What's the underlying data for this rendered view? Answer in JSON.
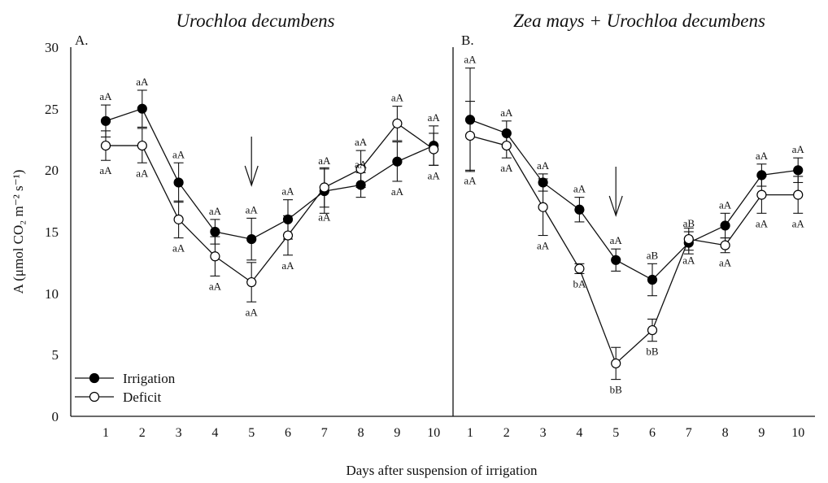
{
  "chart_data": {
    "type": "line",
    "x_axis_title": "Days after suspension of irrigation",
    "y_axis_title": "A (μmol CO₂ m⁻² s⁻¹)",
    "y_ticks": [
      "0",
      "5",
      "10",
      "15",
      "20",
      "25",
      "30"
    ],
    "ylim": [
      0,
      30
    ],
    "x": [
      1,
      2,
      3,
      4,
      5,
      6,
      7,
      8,
      9,
      10
    ],
    "x_tick_labels": [
      "1",
      "2",
      "3",
      "4",
      "5",
      "6",
      "7",
      "8",
      "9",
      "10"
    ],
    "legend": {
      "position": "bottom-left",
      "items": [
        {
          "label": "Irrigation",
          "marker": "filled-circle"
        },
        {
          "label": "Deficit",
          "marker": "open-circle"
        }
      ]
    },
    "colors": {
      "marker_fill": "#000000",
      "open_marker_fill": "#ffffff",
      "line": "#111111"
    },
    "panels": [
      {
        "letter": "A.",
        "title": "Urochloa decumbens",
        "arrow_at_x": 5,
        "series": [
          {
            "name": "Irrigation",
            "marker": "filled",
            "values": [
              24.0,
              25.0,
              19.0,
              15.0,
              14.4,
              16.0,
              18.3,
              18.8,
              20.7,
              22.0
            ],
            "errors": [
              1.3,
              1.5,
              1.6,
              1.0,
              1.7,
              1.6,
              1.8,
              1.0,
              1.6,
              1.6
            ],
            "labels": [
              "aA",
              "aA",
              "aA",
              "aA",
              "aA",
              "aA",
              "aA",
              "aA",
              "aA",
              "aA"
            ],
            "label_side": [
              "up",
              "up",
              "up",
              "up",
              "up",
              "up",
              "up",
              "up",
              "down",
              "up"
            ]
          },
          {
            "name": "Deficit",
            "marker": "open",
            "values": [
              22.0,
              22.0,
              16.0,
              13.0,
              10.9,
              14.7,
              18.6,
              20.1,
              23.8,
              21.7
            ],
            "errors": [
              1.2,
              1.4,
              1.5,
              1.6,
              1.6,
              1.6,
              1.6,
              1.5,
              1.4,
              1.3
            ],
            "labels": [
              "aA",
              "aA",
              "aA",
              "aA",
              "aA",
              "aA",
              "aA",
              "aA",
              "aA",
              "aA"
            ],
            "label_side": [
              "down",
              "down",
              "down",
              "down",
              "down",
              "down",
              "down",
              "up",
              "up",
              "down"
            ]
          }
        ]
      },
      {
        "letter": "B.",
        "title": "Zea mays + Urochloa decumbens",
        "arrow_at_x": 5,
        "series": [
          {
            "name": "Irrigation",
            "marker": "filled",
            "values": [
              24.1,
              23.0,
              19.0,
              16.8,
              12.7,
              11.1,
              14.1,
              15.5,
              19.6,
              20.0
            ],
            "errors": [
              4.2,
              1.0,
              0.7,
              1.0,
              0.9,
              1.3,
              0.9,
              1.0,
              0.9,
              1.0
            ],
            "labels": [
              "aA",
              "aA",
              "aA",
              "aA",
              "aA",
              "aB",
              "aB",
              "aA",
              "aA",
              "aA"
            ],
            "label_side": [
              "up",
              "up",
              "up",
              "up",
              "up",
              "up",
              "up",
              "up",
              "up",
              "up"
            ]
          },
          {
            "name": "Deficit",
            "marker": "open",
            "values": [
              22.8,
              22.0,
              17.0,
              12.0,
              4.3,
              7.0,
              14.4,
              13.9,
              18.0,
              18.0
            ],
            "errors": [
              2.8,
              1.0,
              2.3,
              0.4,
              1.3,
              0.9,
              0.9,
              0.6,
              1.5,
              1.5
            ],
            "labels": [
              "aA",
              "aA",
              "aA",
              "bA",
              "bB",
              "bB",
              "aA",
              "aA",
              "aA",
              "aA"
            ],
            "label_side": [
              "down",
              "down",
              "down",
              "down",
              "down",
              "down",
              "down",
              "down",
              "down",
              "down"
            ]
          }
        ]
      }
    ]
  }
}
